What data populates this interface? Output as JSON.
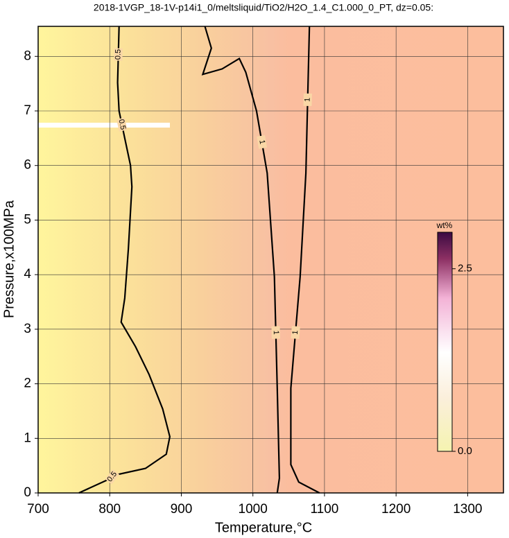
{
  "chart_data": {
    "type": "contour",
    "title": "2018-1VGP_18-1V-p14i1_0/meltsliquid/TiO2/H2O_1.4_C1.000_0_PT, dz=0.05:",
    "x_label": "Temperature,°C",
    "y_label": "Pressure,x100MPa",
    "xlim": [
      700,
      1350
    ],
    "ylim": [
      0,
      8.55
    ],
    "xticks": [
      700,
      800,
      900,
      1000,
      1100,
      1200,
      1300
    ],
    "yticks": [
      0,
      1,
      2,
      3,
      4,
      5,
      6,
      7,
      8
    ],
    "grid": true,
    "contours": [
      {
        "level": 0.5,
        "x": [
          757,
          802,
          805,
          850,
          879,
          884,
          874,
          855,
          836,
          816,
          821,
          826,
          831,
          829,
          821,
          813,
          811,
          813
        ],
        "y": [
          0,
          0.27,
          0.32,
          0.45,
          0.71,
          1.03,
          1.54,
          2.17,
          2.68,
          3.13,
          3.57,
          4.47,
          5.61,
          6.0,
          6.5,
          7.0,
          7.52,
          8.55
        ]
      },
      {
        "level": 1,
        "x": [
          933,
          942,
          930,
          957,
          981,
          990,
          1005,
          1020,
          1030,
          1034,
          1037,
          1034
        ],
        "y": [
          8.55,
          8.15,
          7.67,
          7.77,
          7.96,
          7.71,
          7.0,
          5.86,
          3.96,
          1.92,
          0.27,
          0
        ]
      },
      {
        "level": 1,
        "x": [
          1093,
          1064,
          1053,
          1053,
          1066,
          1074,
          1079
        ],
        "y": [
          0,
          0.2,
          0.52,
          1.92,
          3.96,
          5.86,
          8.55
        ]
      }
    ],
    "colorbar": {
      "label": "wt%",
      "lim": [
        0,
        3
      ],
      "ticks": [
        {
          "value": 0,
          "label": "0.0"
        },
        2.5
      ]
    }
  }
}
